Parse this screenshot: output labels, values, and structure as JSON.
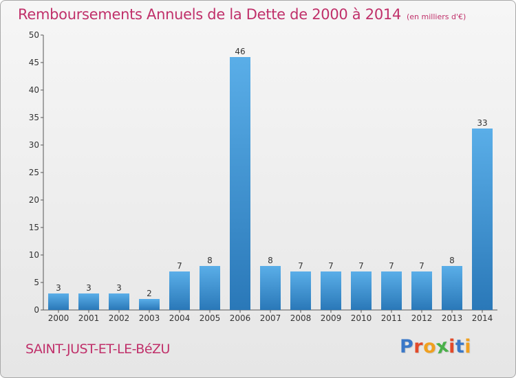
{
  "title": {
    "main": "Remboursements Annuels de la Dette de 2000 à 2014",
    "unit": "(en milliers d'€)"
  },
  "commune": "SAINT-JUST-ET-LE-BéZU",
  "logo": {
    "text": "Proxiti",
    "colors": [
      "#3a78c8",
      "#e24a2a",
      "#f0a020",
      "#4ab04a",
      "#e24a2a",
      "#3a78c8",
      "#f0a020"
    ]
  },
  "colors": {
    "title": "#c0306a",
    "bar_light": "#5aaee8",
    "bar_dark": "#2a78b8"
  },
  "chart_data": {
    "type": "bar",
    "title": "Remboursements Annuels de la Dette de 2000 à 2014",
    "subtitle": "(en milliers d'€)",
    "categories": [
      "2000",
      "2001",
      "2002",
      "2003",
      "2004",
      "2005",
      "2006",
      "2007",
      "2008",
      "2009",
      "2010",
      "2011",
      "2012",
      "2013",
      "2014"
    ],
    "values": [
      3,
      3,
      3,
      2,
      7,
      8,
      46,
      8,
      7,
      7,
      7,
      7,
      7,
      8,
      33
    ],
    "data_labels": [
      "3",
      "3",
      "3",
      "2",
      "7",
      "8",
      "46",
      "8",
      "7",
      "7",
      "7",
      "7",
      "7",
      "8",
      "33"
    ],
    "ylim": [
      0,
      50
    ],
    "yticks": [
      "0",
      "5",
      "10",
      "15",
      "20",
      "25",
      "30",
      "35",
      "40",
      "45",
      "50"
    ],
    "grid": false,
    "legend": "none"
  }
}
